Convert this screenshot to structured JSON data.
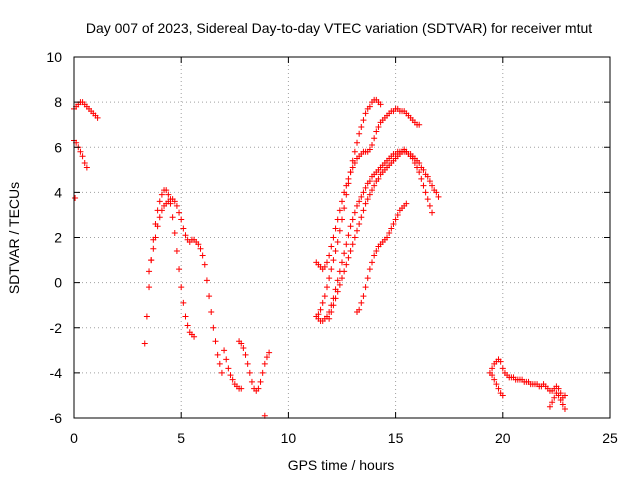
{
  "chart_data": {
    "type": "scatter",
    "title": "Day 007 of 2023, Sidereal Day-to-day VTEC variation (SDTVAR) for receiver mtut",
    "xlabel": "GPS time / hours",
    "ylabel": "SDTVAR / TECUs",
    "xlim": [
      0,
      25
    ],
    "ylim": [
      -6,
      10
    ],
    "xticks": [
      0,
      5,
      10,
      15,
      20,
      25
    ],
    "yticks": [
      -6,
      -4,
      -2,
      0,
      2,
      4,
      6,
      8,
      10
    ],
    "xtick_labels": [
      "0",
      "5",
      "10",
      "15",
      "20",
      "25"
    ],
    "ytick_labels": [
      "-6",
      "-4",
      "-2",
      "0",
      "2",
      "4",
      "6",
      "8",
      "10"
    ],
    "grid": true,
    "legend": "none",
    "marker": "+",
    "color": "#ff0000",
    "series": [
      {
        "name": "s1",
        "x": [
          0.0,
          0.1,
          0.2,
          0.3,
          0.4,
          0.5,
          0.6,
          0.7,
          0.8,
          0.9,
          1.0,
          1.1
        ],
        "y": [
          7.7,
          7.8,
          7.9,
          8.0,
          8.0,
          7.9,
          7.8,
          7.7,
          7.6,
          7.5,
          7.4,
          7.3
        ]
      },
      {
        "name": "s2",
        "x": [
          0.0,
          0.1,
          0.2,
          0.3,
          0.4,
          0.5,
          0.6
        ],
        "y": [
          6.3,
          6.2,
          6.0,
          5.8,
          5.6,
          5.3,
          5.1
        ]
      },
      {
        "name": "s3",
        "x": [
          0.05
        ],
        "y": [
          3.75
        ]
      },
      {
        "name": "s4",
        "x": [
          3.3,
          3.4,
          3.5,
          3.6,
          3.7,
          3.8,
          3.9,
          4.0,
          4.1,
          4.2,
          4.3,
          4.4,
          4.5,
          4.6,
          4.7,
          4.8,
          4.9,
          5.0,
          5.1,
          5.2,
          5.3,
          5.4,
          5.5,
          5.6
        ],
        "y": [
          -2.7,
          -1.5,
          -0.2,
          1.0,
          1.9,
          2.6,
          3.2,
          3.6,
          3.9,
          4.1,
          4.1,
          3.9,
          3.5,
          2.9,
          2.2,
          1.4,
          0.6,
          -0.2,
          -0.9,
          -1.5,
          -1.9,
          -2.2,
          -2.3,
          -2.4
        ]
      },
      {
        "name": "s5",
        "x": [
          3.5,
          3.6,
          3.7,
          3.8,
          3.9,
          4.0,
          4.1,
          4.2,
          4.3,
          4.4,
          4.5,
          4.6,
          4.7,
          4.8,
          4.9,
          5.0,
          5.1,
          5.2,
          5.3,
          5.4,
          5.5,
          5.6,
          5.7,
          5.8,
          5.9,
          6.0,
          6.1,
          6.2,
          6.3,
          6.4,
          6.5,
          6.6,
          6.7,
          6.8,
          6.9
        ],
        "y": [
          0.5,
          1.0,
          1.5,
          2.0,
          2.5,
          2.9,
          3.2,
          3.4,
          3.5,
          3.6,
          3.7,
          3.7,
          3.6,
          3.4,
          3.1,
          2.8,
          2.4,
          2.1,
          1.9,
          1.8,
          1.9,
          1.9,
          1.8,
          1.7,
          1.5,
          1.2,
          0.8,
          0.1,
          -0.6,
          -1.3,
          -2.0,
          -2.6,
          -3.2,
          -3.6,
          -4.0
        ]
      },
      {
        "name": "s6",
        "x": [
          7.0,
          7.1,
          7.2,
          7.3,
          7.4,
          7.5,
          7.6,
          7.7,
          7.8
        ],
        "y": [
          -3.0,
          -3.4,
          -3.8,
          -4.1,
          -4.3,
          -4.5,
          -4.6,
          -4.7,
          -4.7
        ]
      },
      {
        "name": "s7",
        "x": [
          7.7,
          7.8,
          7.9,
          8.0,
          8.1,
          8.2,
          8.3,
          8.4,
          8.5,
          8.6,
          8.7,
          8.8,
          8.9,
          9.0,
          9.1
        ],
        "y": [
          -2.6,
          -2.7,
          -2.9,
          -3.2,
          -3.6,
          -4.0,
          -4.4,
          -4.7,
          -4.8,
          -4.7,
          -4.4,
          -4.0,
          -3.6,
          -3.3,
          -3.1
        ]
      },
      {
        "name": "s8",
        "x": [
          8.9
        ],
        "y": [
          -5.9
        ]
      },
      {
        "name": "s9",
        "x": [
          11.3,
          11.4,
          11.5,
          11.6,
          11.7,
          11.8,
          11.9,
          12.0,
          12.1,
          12.2,
          12.3,
          12.4,
          12.5,
          12.6,
          12.7,
          12.8,
          12.9,
          13.0,
          13.1,
          13.2,
          13.3,
          13.4,
          13.5,
          13.6,
          13.7,
          13.8,
          13.9,
          14.0,
          14.1,
          14.2,
          14.3
        ],
        "y": [
          -1.5,
          -1.4,
          -1.2,
          -0.9,
          -0.6,
          -0.2,
          0.2,
          0.6,
          1.0,
          1.4,
          1.8,
          2.3,
          2.8,
          3.3,
          3.9,
          4.4,
          4.9,
          5.4,
          5.8,
          6.2,
          6.6,
          6.9,
          7.2,
          7.5,
          7.7,
          7.8,
          8.0,
          8.1,
          8.1,
          8.0,
          7.9
        ]
      },
      {
        "name": "s10",
        "x": [
          11.3,
          11.4,
          11.5,
          11.6,
          11.7,
          11.8,
          11.9,
          12.0,
          12.1,
          12.2,
          12.3,
          12.4,
          12.5,
          12.6,
          12.7,
          12.8,
          12.9,
          13.0,
          13.1,
          13.2,
          13.3,
          13.4,
          13.5,
          13.6,
          13.7,
          13.8,
          13.9,
          14.0,
          14.1,
          14.2,
          14.3,
          14.4,
          14.5,
          14.6,
          14.7,
          14.8,
          14.9,
          15.0,
          15.1,
          15.2,
          15.3,
          15.4,
          15.5,
          15.6,
          15.7,
          15.8,
          15.9,
          16.0,
          16.1
        ],
        "y": [
          0.9,
          0.8,
          0.7,
          0.6,
          0.7,
          0.9,
          1.2,
          1.6,
          2.0,
          2.4,
          2.8,
          3.2,
          3.6,
          4.0,
          4.3,
          4.6,
          4.9,
          5.1,
          5.3,
          5.5,
          5.6,
          5.7,
          5.8,
          5.8,
          5.8,
          5.9,
          6.1,
          6.4,
          6.7,
          6.9,
          7.1,
          7.2,
          7.3,
          7.4,
          7.5,
          7.6,
          7.6,
          7.7,
          7.7,
          7.6,
          7.6,
          7.6,
          7.5,
          7.4,
          7.3,
          7.2,
          7.1,
          7.0,
          7.0
        ]
      },
      {
        "name": "s11",
        "x": [
          11.4,
          11.5,
          11.6,
          11.7,
          11.8,
          11.9,
          12.0,
          12.1,
          12.2,
          12.3,
          12.4,
          12.5,
          12.6,
          12.7,
          12.8,
          12.9,
          13.0,
          13.1,
          13.2,
          13.3,
          13.4,
          13.5,
          13.6,
          13.7,
          13.8,
          13.9,
          14.0,
          14.1,
          14.2,
          14.3,
          14.4,
          14.5,
          14.6,
          14.7,
          14.8,
          14.9,
          15.0,
          15.1,
          15.2,
          15.3,
          15.4,
          15.5,
          15.6,
          15.7,
          15.8,
          15.9,
          16.0,
          16.1,
          16.2,
          16.3,
          16.4,
          16.5,
          16.6,
          16.7,
          16.8,
          16.9,
          17.0
        ],
        "y": [
          -1.6,
          -1.7,
          -1.7,
          -1.6,
          -1.5,
          -1.3,
          -1.0,
          -0.7,
          -0.3,
          0.1,
          0.5,
          0.9,
          1.3,
          1.7,
          2.1,
          2.5,
          2.8,
          3.1,
          3.4,
          3.6,
          3.8,
          4.0,
          4.2,
          4.4,
          4.5,
          4.7,
          4.8,
          4.9,
          5.0,
          5.1,
          5.2,
          5.3,
          5.4,
          5.5,
          5.6,
          5.7,
          5.7,
          5.8,
          5.8,
          5.8,
          5.8,
          5.8,
          5.7,
          5.7,
          5.6,
          5.5,
          5.4,
          5.3,
          5.1,
          5.0,
          4.8,
          4.7,
          4.5,
          4.3,
          4.1,
          4.0,
          3.8
        ]
      },
      {
        "name": "s12",
        "x": [
          11.9,
          12.0,
          12.1,
          12.2,
          12.3,
          12.4,
          12.5,
          12.6,
          12.7,
          12.8,
          12.9,
          13.0,
          13.1,
          13.2,
          13.3,
          13.4,
          13.5,
          13.6,
          13.7,
          13.8,
          13.9,
          14.0,
          14.1,
          14.2,
          14.3,
          14.4,
          14.5,
          14.6,
          14.7,
          14.8,
          14.9,
          15.0,
          15.1,
          15.2,
          15.3,
          15.4,
          15.5,
          15.6,
          15.7,
          15.8,
          15.9,
          16.0,
          16.1,
          16.2,
          16.3,
          16.4,
          16.5,
          16.6,
          16.7
        ],
        "y": [
          -1.6,
          -1.3,
          -1.0,
          -0.7,
          -0.4,
          -0.1,
          0.2,
          0.5,
          0.8,
          1.1,
          1.4,
          1.7,
          2.0,
          2.3,
          2.6,
          2.9,
          3.2,
          3.5,
          3.7,
          3.9,
          4.1,
          4.3,
          4.5,
          4.6,
          4.8,
          4.9,
          5.0,
          5.1,
          5.2,
          5.3,
          5.4,
          5.5,
          5.6,
          5.7,
          5.8,
          5.9,
          5.8,
          5.7,
          5.6,
          5.5,
          5.3,
          5.1,
          4.9,
          4.6,
          4.3,
          4.0,
          3.7,
          3.4,
          3.1
        ]
      },
      {
        "name": "s13",
        "x": [
          13.2,
          13.3,
          13.4,
          13.5,
          13.6,
          13.7,
          13.8,
          13.9,
          14.0,
          14.1,
          14.2,
          14.3,
          14.4,
          14.5,
          14.6,
          14.7,
          14.8,
          14.9,
          15.0,
          15.1,
          15.2,
          15.3,
          15.4,
          15.5
        ],
        "y": [
          -1.3,
          -1.2,
          -0.9,
          -0.6,
          -0.2,
          0.2,
          0.6,
          0.9,
          1.2,
          1.4,
          1.6,
          1.7,
          1.8,
          1.9,
          2.0,
          2.2,
          2.4,
          2.6,
          2.8,
          3.0,
          3.2,
          3.3,
          3.4,
          3.5
        ]
      },
      {
        "name": "s14",
        "x": [
          19.4,
          19.5,
          19.6,
          19.7,
          19.8,
          19.9,
          20.0,
          20.1,
          20.2,
          20.3,
          20.4,
          20.5,
          20.6,
          20.7,
          20.8,
          20.9,
          21.0,
          21.1,
          21.2,
          21.3,
          21.4,
          21.5,
          21.6,
          21.7,
          21.8,
          21.9,
          22.0,
          22.1,
          22.2,
          22.3,
          22.4,
          22.5,
          22.6,
          22.7,
          22.8,
          22.9
        ],
        "y": [
          -4.0,
          -3.8,
          -3.6,
          -3.5,
          -3.4,
          -3.5,
          -3.8,
          -4.0,
          -4.1,
          -4.2,
          -4.2,
          -4.2,
          -4.3,
          -4.3,
          -4.3,
          -4.3,
          -4.4,
          -4.4,
          -4.4,
          -4.5,
          -4.5,
          -4.5,
          -4.5,
          -4.6,
          -4.6,
          -4.5,
          -4.6,
          -4.7,
          -4.8,
          -4.8,
          -4.7,
          -4.6,
          -4.7,
          -4.9,
          -5.1,
          -5.0
        ]
      },
      {
        "name": "s15",
        "x": [
          19.5,
          19.6,
          19.7,
          19.8,
          19.9,
          20.0
        ],
        "y": [
          -4.1,
          -4.3,
          -4.5,
          -4.7,
          -4.9,
          -5.0
        ]
      },
      {
        "name": "s16",
        "x": [
          22.2,
          22.3,
          22.4,
          22.5,
          22.6,
          22.7,
          22.8,
          22.9
        ],
        "y": [
          -5.5,
          -5.3,
          -5.1,
          -4.9,
          -5.0,
          -5.2,
          -5.4,
          -5.6
        ]
      }
    ]
  }
}
